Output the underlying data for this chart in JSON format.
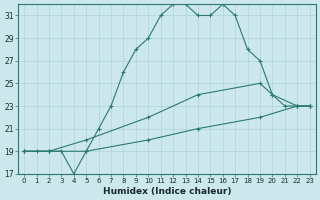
{
  "xlabel": "Humidex (Indice chaleur)",
  "bg_color": "#cce8ec",
  "grid_color": "#b0d8dc",
  "line_color": "#2a7a70",
  "line1_x": [
    0,
    1,
    2,
    3,
    4,
    5,
    6,
    7,
    8,
    9,
    10,
    11,
    12,
    13,
    14,
    15,
    16,
    17,
    18,
    19,
    20,
    21,
    22,
    23
  ],
  "line1_y": [
    19,
    19,
    19,
    19,
    17,
    19,
    21,
    23,
    26,
    28,
    29,
    31,
    32,
    32,
    31,
    31,
    32,
    31,
    28,
    27,
    24,
    23,
    23,
    23
  ],
  "line2_x": [
    0,
    2,
    5,
    10,
    14,
    19,
    20,
    22,
    23
  ],
  "line2_y": [
    19,
    19,
    20,
    22,
    24,
    25,
    24,
    23,
    23
  ],
  "line3_x": [
    0,
    2,
    5,
    10,
    14,
    19,
    22,
    23
  ],
  "line3_y": [
    19,
    19,
    19,
    20,
    21,
    22,
    23,
    23
  ],
  "xlim": [
    -0.5,
    23.5
  ],
  "ylim": [
    17,
    32
  ],
  "yticks": [
    17,
    19,
    21,
    23,
    25,
    27,
    29,
    31
  ],
  "xticks": [
    0,
    1,
    2,
    3,
    4,
    5,
    6,
    7,
    8,
    9,
    10,
    11,
    12,
    13,
    14,
    15,
    16,
    17,
    18,
    19,
    20,
    21,
    22,
    23
  ]
}
